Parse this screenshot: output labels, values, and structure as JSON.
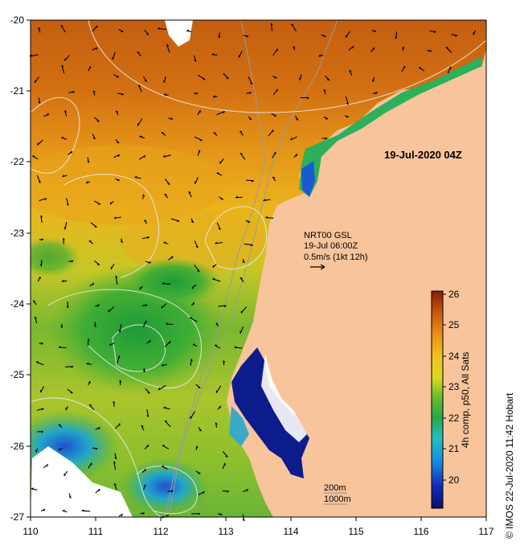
{
  "map": {
    "y_ticks": [
      "-20",
      "-21",
      "-22",
      "-23",
      "-24",
      "-25",
      "-26",
      "-27"
    ],
    "x_ticks": [
      "110",
      "111",
      "112",
      "113",
      "114",
      "115",
      "116",
      "117"
    ],
    "date_label": "19-Jul-2020 04Z",
    "current_model": "NRT00 GSL",
    "current_time": "19-Jul 06:00Z",
    "current_scale": "0.5m/s (1kt 12h)",
    "isobath_200": "200m",
    "isobath_1000": "1000m"
  },
  "colorbar": {
    "ticks": [
      "26",
      "25",
      "24",
      "23",
      "22",
      "21",
      "20"
    ],
    "title": "4h comp, p50, All Sats"
  },
  "credit": "©  IMOS 22-Jul-2020 11:42 Hobart",
  "colors": {
    "land": "#f8c49c",
    "warm": "#c06010",
    "mid": "#e8b020",
    "green": "#40a838",
    "cold": "#0a1a90"
  }
}
